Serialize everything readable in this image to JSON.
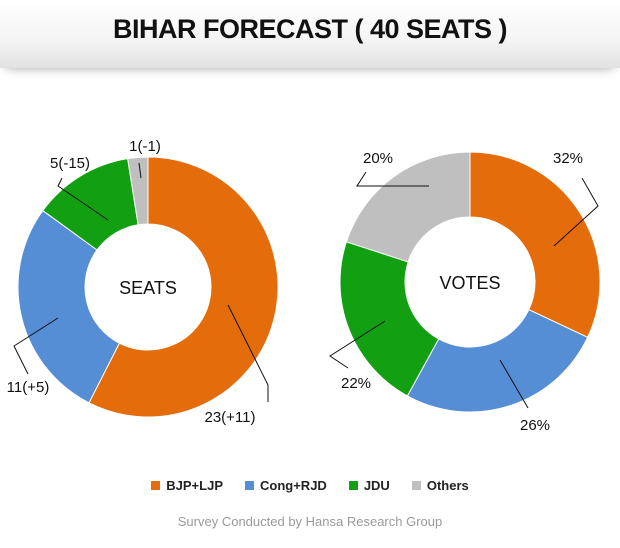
{
  "title": "BIHAR FORECAST ( 40 SEATS )",
  "source": "Survey Conducted by Hansa Research Group",
  "colors": {
    "bjp": "#E46C0A",
    "cong": "#558ED5",
    "jdu": "#12A012",
    "others": "#BFBFBF"
  },
  "legend": [
    {
      "label": "BJP+LJP",
      "color": "#E46C0A"
    },
    {
      "label": "Cong+RJD",
      "color": "#558ED5"
    },
    {
      "label": "JDU",
      "color": "#12A012"
    },
    {
      "label": "Others",
      "color": "#BFBFBF"
    }
  ],
  "chart_data": [
    {
      "type": "pie",
      "center_label": "SEATS",
      "categories": [
        "BJP+LJP",
        "Cong+RJD",
        "JDU",
        "Others"
      ],
      "values": [
        23,
        11,
        5,
        1
      ],
      "data_labels": [
        "23(+11)",
        "11(+5)",
        "5(-15)",
        "1(-1)"
      ]
    },
    {
      "type": "pie",
      "center_label": "VOTES",
      "categories": [
        "BJP+LJP",
        "Cong+RJD",
        "JDU",
        "Others"
      ],
      "values": [
        32,
        26,
        22,
        20
      ],
      "data_labels": [
        "32%",
        "26%",
        "22%",
        "20%"
      ]
    }
  ]
}
